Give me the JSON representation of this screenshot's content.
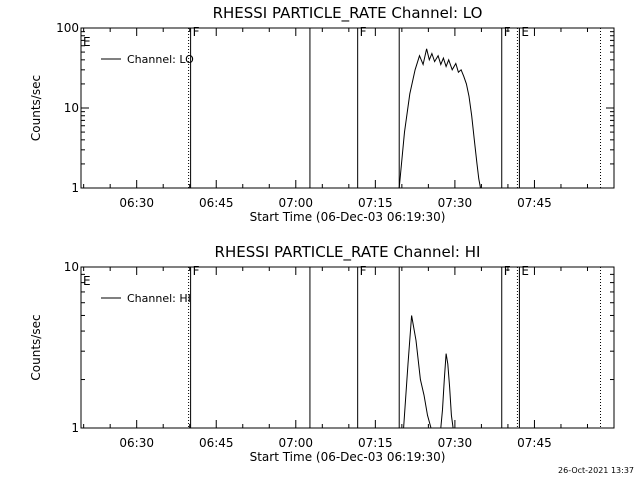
{
  "footer": {
    "timestamp": "26-Oct-2021 13:37"
  },
  "chart_data": [
    {
      "type": "line",
      "title": "RHESSI PARTICLE_RATE Channel: LO",
      "xlabel": "Start Time (06-Dec-03 06:19:30)",
      "ylabel": "Counts/sec",
      "yscale": "log",
      "xlim": [
        "06:19:30",
        "08:00:00"
      ],
      "ylim": [
        1,
        100
      ],
      "x_ticks": [
        "06:30",
        "06:45",
        "07:00",
        "07:15",
        "07:30",
        "07:45"
      ],
      "y_ticks": [
        "1",
        "10",
        "100"
      ],
      "grid": false,
      "legend": {
        "placement": "top-left",
        "entries": [
          "Channel: LO"
        ]
      },
      "annotations": [
        {
          "label": "E",
          "time": "06:19:30",
          "style": "none"
        },
        {
          "label": "F",
          "time": "06:40:10",
          "style": "dotted+solid"
        },
        {
          "label": "",
          "time": "07:02:40",
          "style": "solid"
        },
        {
          "label": "F",
          "time": "07:11:40",
          "style": "solid"
        },
        {
          "label": "",
          "time": "07:19:30",
          "style": "solid"
        },
        {
          "label": "F",
          "time": "07:38:50",
          "style": "solid"
        },
        {
          "label": "E",
          "time": "07:42:10",
          "style": "dotted+solid"
        },
        {
          "label": "",
          "time": "07:57:50",
          "style": "dotted"
        }
      ],
      "series": [
        {
          "name": "Channel: LO",
          "x": [
            "07:19:30",
            "07:20:30",
            "07:21:30",
            "07:22:30",
            "07:23:20",
            "07:24:00",
            "07:24:40",
            "07:25:10",
            "07:25:40",
            "07:26:10",
            "07:26:50",
            "07:27:20",
            "07:27:50",
            "07:28:20",
            "07:28:50",
            "07:29:30",
            "07:30:10",
            "07:30:40",
            "07:31:10",
            "07:31:40",
            "07:32:10",
            "07:32:40",
            "07:33:10",
            "07:33:40",
            "07:34:10",
            "07:34:30",
            "07:34:50"
          ],
          "y": [
            1,
            5,
            15,
            30,
            45,
            35,
            55,
            40,
            48,
            38,
            45,
            35,
            42,
            33,
            40,
            30,
            36,
            28,
            30,
            25,
            20,
            14,
            8,
            4,
            2,
            1.3,
            1
          ]
        }
      ]
    },
    {
      "type": "line",
      "title": "RHESSI PARTICLE_RATE Channel: HI",
      "xlabel": "Start Time (06-Dec-03 06:19:30)",
      "ylabel": "Counts/sec",
      "yscale": "log",
      "xlim": [
        "06:19:30",
        "08:00:00"
      ],
      "ylim": [
        1,
        10
      ],
      "x_ticks": [
        "06:30",
        "06:45",
        "07:00",
        "07:15",
        "07:30",
        "07:45"
      ],
      "y_ticks": [
        "1",
        "10"
      ],
      "grid": false,
      "legend": {
        "placement": "top-left",
        "entries": [
          "Channel: HI"
        ]
      },
      "annotations": [
        {
          "label": "E",
          "time": "06:19:30",
          "style": "none"
        },
        {
          "label": "F",
          "time": "06:40:10",
          "style": "dotted+solid"
        },
        {
          "label": "",
          "time": "07:02:40",
          "style": "solid"
        },
        {
          "label": "F",
          "time": "07:11:40",
          "style": "solid"
        },
        {
          "label": "",
          "time": "07:19:30",
          "style": "solid"
        },
        {
          "label": "F",
          "time": "07:38:50",
          "style": "solid"
        },
        {
          "label": "E",
          "time": "07:42:10",
          "style": "dotted+solid"
        },
        {
          "label": "",
          "time": "07:57:50",
          "style": "dotted"
        }
      ],
      "series": [
        {
          "name": "Channel: HI",
          "x": [
            "07:20:20",
            "07:21:10",
            "07:21:50",
            "07:22:40",
            "07:23:30",
            "07:24:10",
            "07:24:50",
            "07:25:30",
            "07:26:10",
            "07:26:40",
            "07:27:20",
            "07:27:40",
            "07:28:00",
            "07:28:20",
            "07:28:40",
            "07:29:00",
            "07:29:20",
            "07:29:40",
            "07:30:00"
          ],
          "y": [
            1,
            2.5,
            5,
            3.5,
            2,
            1.6,
            1.2,
            1,
            1,
            1,
            1,
            1.3,
            2.0,
            2.9,
            2.5,
            1.8,
            1.2,
            1.0,
            1
          ]
        }
      ]
    }
  ]
}
